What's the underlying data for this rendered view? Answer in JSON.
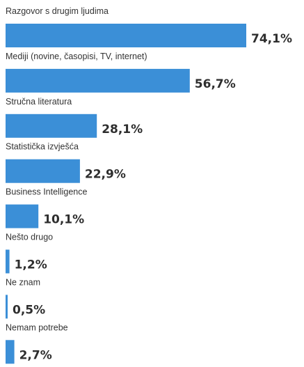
{
  "chart_data": {
    "type": "bar",
    "orientation": "horizontal",
    "categories": [
      "Razgovor s drugim ljudima",
      "Mediji (novine, časopisi, TV, internet)",
      "Stručna literatura",
      "Statistička izvješća",
      "Business Intelligence",
      "Nešto drugo",
      "Ne znam",
      "Nemam potrebe"
    ],
    "values": [
      74.1,
      56.7,
      28.1,
      22.9,
      10.1,
      1.2,
      0.5,
      2.7
    ],
    "value_labels": [
      "74,1%",
      "56,7%",
      "28,1%",
      "22,9%",
      "10,1%",
      "1,2%",
      "0,5%",
      "2,7%"
    ],
    "value_unit": "%",
    "bar_color": "#3b8fd7",
    "title": "",
    "xlabel": "",
    "ylabel": "",
    "xlim": [
      0,
      74.1
    ],
    "grid": false,
    "legend": "none"
  }
}
